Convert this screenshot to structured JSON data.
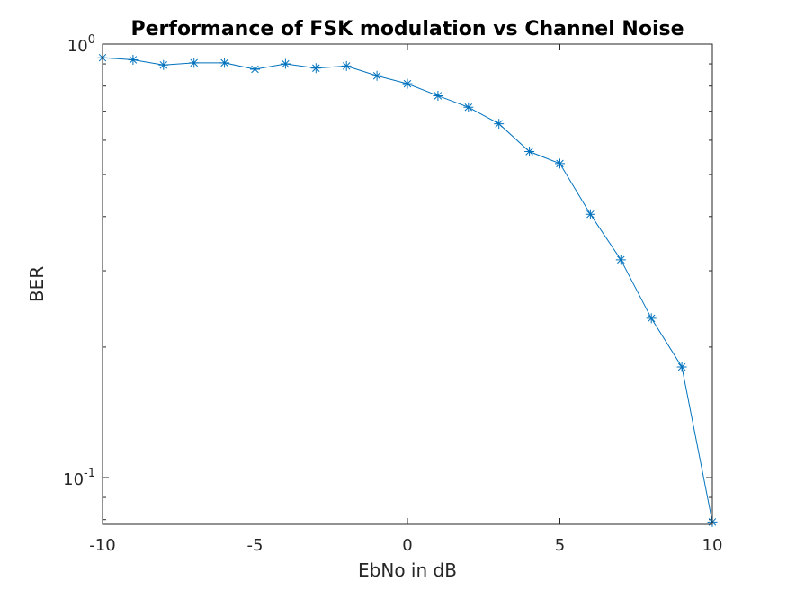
{
  "chart_data": {
    "type": "line",
    "title": "Performance of FSK modulation vs Channel Noise",
    "xlabel": "EbNo in dB",
    "ylabel": "BER",
    "xlim": [
      -10,
      10
    ],
    "ylim": [
      0.078,
      1.0
    ],
    "yscale": "log",
    "grid": false,
    "legend": "none",
    "x_ticks": [
      -10,
      -5,
      0,
      5,
      10
    ],
    "x_tick_labels": [
      "-10",
      "-5",
      "0",
      "5",
      "10"
    ],
    "y_ticks": [
      0.1,
      1.0
    ],
    "y_tick_labels": [
      {
        "base": "10",
        "exp": "-1"
      },
      {
        "base": "10",
        "exp": "0"
      }
    ],
    "marker": "asterisk",
    "series": [
      {
        "color": "#0072BD",
        "x": [
          -10,
          -9,
          -8,
          -7,
          -6,
          -5,
          -4,
          -3,
          -2,
          -1,
          0,
          1,
          2,
          3,
          4,
          5,
          6,
          7,
          8,
          9,
          10
        ],
        "y": [
          0.93,
          0.92,
          0.895,
          0.905,
          0.905,
          0.875,
          0.9,
          0.88,
          0.89,
          0.845,
          0.81,
          0.76,
          0.715,
          0.655,
          0.565,
          0.53,
          0.405,
          0.318,
          0.233,
          0.18,
          0.079
        ]
      }
    ]
  }
}
